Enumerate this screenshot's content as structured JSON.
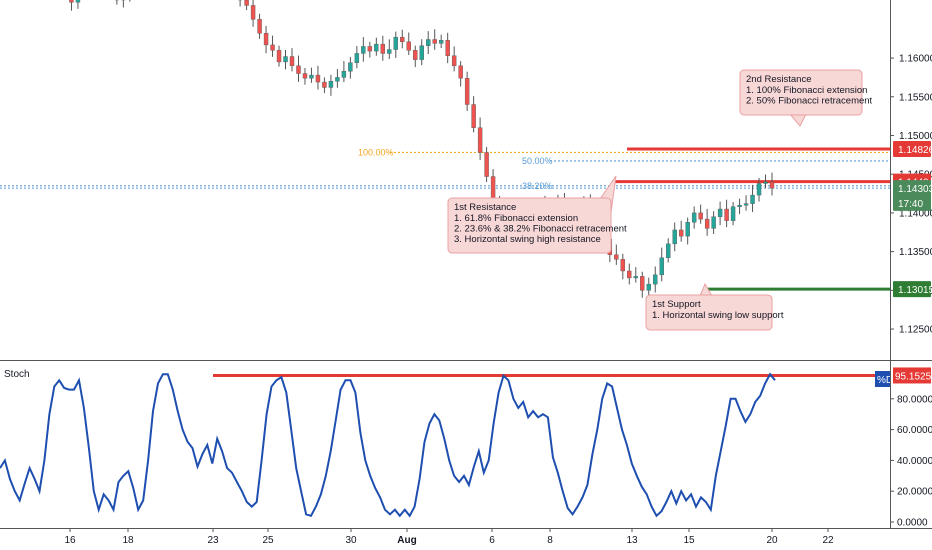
{
  "chart_data": [
    {
      "type": "candlestick",
      "ylim": [
        1.121,
        1.1675
      ],
      "yticks": [
        "1.16000",
        "1.15500",
        "1.15000",
        "1.14500",
        "1.14000",
        "1.13500",
        "1.13000",
        "1.12500"
      ],
      "xticks": [
        "16",
        "18",
        "23",
        "25",
        "30",
        "Aug",
        "6",
        "8",
        "13",
        "15",
        "20",
        "22"
      ],
      "candle_closes": [
        1.1715,
        1.17,
        1.169,
        1.1672,
        1.1686,
        1.1705,
        1.172,
        1.1728,
        1.171,
        1.1685,
        1.1675,
        1.168,
        1.17,
        1.172,
        1.1712,
        1.169,
        1.1685,
        1.1695,
        1.171,
        1.1725,
        1.17,
        1.169,
        1.1703,
        1.1715,
        1.1725,
        1.1712,
        1.17,
        1.1708,
        1.1697,
        1.1675,
        1.1668,
        1.165,
        1.1632,
        1.1617,
        1.161,
        1.1595,
        1.1602,
        1.159,
        1.158,
        1.1574,
        1.1578,
        1.1569,
        1.1562,
        1.157,
        1.1575,
        1.1583,
        1.1594,
        1.1606,
        1.1615,
        1.1609,
        1.1618,
        1.1606,
        1.1611,
        1.1627,
        1.1621,
        1.161,
        1.1598,
        1.1616,
        1.1624,
        1.1619,
        1.1623,
        1.1603,
        1.159,
        1.1574,
        1.154,
        1.151,
        1.1478,
        1.1447,
        1.141,
        1.1382,
        1.1395,
        1.1385,
        1.1371,
        1.1392,
        1.1405,
        1.141,
        1.1395,
        1.1403,
        1.1415,
        1.1402,
        1.139,
        1.1408,
        1.1412,
        1.1395,
        1.1378,
        1.1366,
        1.1346,
        1.134,
        1.1325,
        1.1316,
        1.1318,
        1.13,
        1.1308,
        1.132,
        1.1342,
        1.136,
        1.1378,
        1.137,
        1.1388,
        1.14,
        1.1392,
        1.138,
        1.1395,
        1.1405,
        1.139,
        1.1408,
        1.141,
        1.1412,
        1.1423,
        1.1438,
        1.144,
        1.1432
      ],
      "levels": [
        {
          "label": "1.14826",
          "value": 1.14826,
          "color": "#e53935",
          "role": "2nd resistance"
        },
        {
          "label": "1.14404",
          "value": 1.14404,
          "color": "#e53935",
          "role": "1st resistance"
        },
        {
          "label": "1.13015",
          "value": 1.13015,
          "color": "#2e7d32",
          "role": "1st support"
        }
      ],
      "fib_levels": [
        {
          "label": "100.00%",
          "value": 1.14781,
          "color": "#f5a623"
        },
        {
          "label": "50.00%",
          "value": 1.14671,
          "color": "#5b9bd5"
        },
        {
          "label": "38.20%",
          "value": 1.1435,
          "color": "#5b9bd5"
        }
      ],
      "current_price": "1.14303",
      "countdown": "17:40"
    },
    {
      "type": "line",
      "name": "Stoch",
      "ylim": [
        0,
        100
      ],
      "yticks": [
        "80.0000",
        "60.0000",
        "40.0000",
        "20.0000",
        "0.0000"
      ],
      "series": [
        {
          "name": "%D",
          "values": [
            35,
            40,
            28,
            20,
            14,
            25,
            35,
            28,
            20,
            40,
            70,
            88,
            92,
            87,
            86,
            86,
            92,
            74,
            48,
            20,
            8,
            18,
            14,
            8,
            26,
            30,
            33,
            22,
            8,
            14,
            40,
            72,
            90,
            96,
            96,
            86,
            72,
            60,
            52,
            48,
            36,
            44,
            50,
            38,
            54,
            46,
            35,
            32,
            26,
            20,
            13,
            10,
            13,
            40,
            70,
            88,
            92,
            94,
            84,
            60,
            35,
            20,
            5,
            4,
            10,
            18,
            30,
            46,
            66,
            86,
            92,
            92,
            84,
            58,
            40,
            30,
            22,
            16,
            8,
            5,
            8,
            4,
            8,
            4,
            10,
            28,
            52,
            64,
            70,
            66,
            54,
            40,
            30,
            26,
            30,
            24,
            36,
            46,
            32,
            40,
            64,
            84,
            95,
            92,
            80,
            74,
            78,
            68,
            72,
            68,
            70,
            68,
            42,
            32,
            20,
            9,
            5,
            10,
            16,
            24,
            44,
            60,
            80,
            90,
            88,
            74,
            60,
            50,
            38,
            30,
            23,
            18,
            10,
            4,
            7,
            13,
            20,
            12,
            20,
            14,
            18,
            10,
            16,
            13,
            8,
            30,
            46,
            62,
            80,
            80,
            72,
            65,
            70,
            78,
            82,
            90,
            96,
            92
          ]
        }
      ],
      "level": {
        "label": "95.1525",
        "value": 95.1525,
        "color": "#e53935"
      },
      "legend": "%D"
    }
  ],
  "annotations": {
    "resistance2": {
      "title": "2nd Resistance",
      "lines": [
        "1. 100% Fibonacci extension",
        "2. 50% Fibonacci retracement"
      ]
    },
    "resistance1": {
      "title": "1st Resistance",
      "lines": [
        "1. 61.8% Fibonacci extension",
        "2. 23.6% & 38.2% Fibonacci retracement",
        "3. Horizontal swing high resistance"
      ]
    },
    "support1": {
      "title": "1st Support",
      "lines": [
        "1. Horizontal swing low support"
      ]
    }
  },
  "colors": {
    "up": "#26a69a",
    "down": "#ef5350",
    "wick": "#555555",
    "stoch_line": "#1e4fb0",
    "grid_axis": "#555555"
  }
}
